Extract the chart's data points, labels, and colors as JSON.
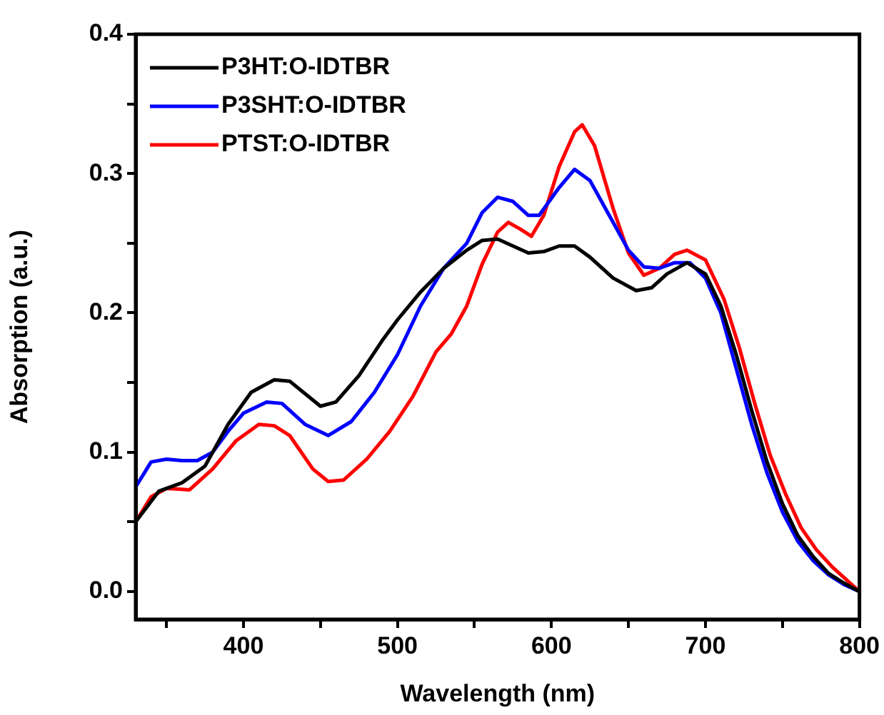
{
  "chart_data": {
    "type": "line",
    "xlabel": "Wavelength (nm)",
    "ylabel": "Absorption (a.u.)",
    "xlim": [
      330,
      800
    ],
    "ylim": [
      -0.02,
      0.4
    ],
    "xticks": [
      {
        "value": 350,
        "label": null
      },
      400,
      {
        "value": 450,
        "label": null
      },
      500,
      {
        "value": 550,
        "label": null
      },
      600,
      {
        "value": 650,
        "label": null
      },
      700,
      {
        "value": 750,
        "label": null
      },
      800
    ],
    "yticks": [
      {
        "value": 0,
        "label": "0.0"
      },
      {
        "value": 0.05,
        "label": null
      },
      0.1,
      {
        "value": 0.15,
        "label": null
      },
      0.2,
      {
        "value": 0.25,
        "label": null
      },
      0.3,
      {
        "value": 0.35,
        "label": null
      },
      0.4
    ],
    "grid": false,
    "legend": "top left",
    "marker": "none",
    "line_style": "solid",
    "series": [
      {
        "name": "P3HT:O-IDTBR",
        "color": "#000000",
        "x": [
          330,
          345,
          360,
          375,
          390,
          405,
          420,
          430,
          440,
          450,
          460,
          475,
          490,
          500,
          515,
          530,
          545,
          555,
          565,
          575,
          585,
          595,
          605,
          615,
          625,
          640,
          655,
          665,
          675,
          688,
          700,
          710,
          720,
          730,
          740,
          750,
          760,
          770,
          780,
          790,
          800
        ],
        "values": [
          0.05,
          0.072,
          0.078,
          0.09,
          0.12,
          0.143,
          0.152,
          0.151,
          0.142,
          0.133,
          0.136,
          0.155,
          0.18,
          0.195,
          0.215,
          0.232,
          0.245,
          0.252,
          0.253,
          0.248,
          0.243,
          0.244,
          0.248,
          0.248,
          0.24,
          0.225,
          0.216,
          0.218,
          0.228,
          0.236,
          0.228,
          0.205,
          0.17,
          0.13,
          0.093,
          0.063,
          0.04,
          0.025,
          0.013,
          0.006,
          0.0
        ]
      },
      {
        "name": "P3SHT:O-IDTBR",
        "color": "#0000ff",
        "x": [
          330,
          340,
          350,
          360,
          370,
          380,
          390,
          400,
          415,
          425,
          440,
          455,
          470,
          485,
          500,
          515,
          530,
          545,
          555,
          565,
          575,
          585,
          592,
          605,
          615,
          625,
          640,
          650,
          660,
          670,
          680,
          690,
          700,
          710,
          720,
          730,
          740,
          750,
          760,
          770,
          780,
          790,
          800
        ],
        "values": [
          0.075,
          0.093,
          0.095,
          0.094,
          0.094,
          0.1,
          0.115,
          0.128,
          0.136,
          0.135,
          0.12,
          0.112,
          0.122,
          0.143,
          0.17,
          0.205,
          0.232,
          0.25,
          0.272,
          0.283,
          0.28,
          0.27,
          0.27,
          0.29,
          0.303,
          0.295,
          0.265,
          0.245,
          0.233,
          0.232,
          0.236,
          0.236,
          0.225,
          0.2,
          0.16,
          0.12,
          0.085,
          0.057,
          0.036,
          0.022,
          0.012,
          0.005,
          0.0
        ]
      },
      {
        "name": "PTST:O-IDTBR",
        "color": "#ff0000",
        "x": [
          330,
          340,
          350,
          365,
          380,
          395,
          410,
          420,
          430,
          445,
          455,
          465,
          480,
          495,
          510,
          525,
          535,
          545,
          555,
          565,
          572,
          580,
          587,
          595,
          605,
          615,
          620,
          628,
          640,
          650,
          660,
          670,
          680,
          688,
          700,
          712,
          722,
          732,
          742,
          752,
          762,
          772,
          782,
          792,
          800
        ],
        "values": [
          0.05,
          0.068,
          0.074,
          0.073,
          0.088,
          0.108,
          0.12,
          0.119,
          0.112,
          0.088,
          0.079,
          0.08,
          0.095,
          0.115,
          0.14,
          0.172,
          0.185,
          0.205,
          0.235,
          0.258,
          0.265,
          0.26,
          0.255,
          0.27,
          0.305,
          0.33,
          0.335,
          0.32,
          0.275,
          0.243,
          0.227,
          0.232,
          0.242,
          0.245,
          0.238,
          0.21,
          0.175,
          0.135,
          0.098,
          0.07,
          0.046,
          0.03,
          0.018,
          0.008,
          0.0
        ]
      }
    ]
  }
}
